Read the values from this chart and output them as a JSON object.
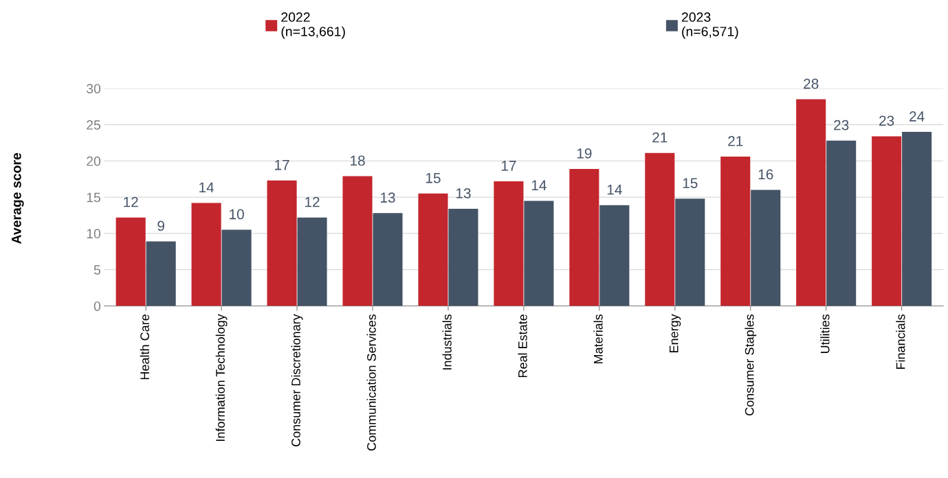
{
  "chart_data": {
    "type": "bar",
    "ylabel": "Average score",
    "categories": [
      "Health Care",
      "Information Technology",
      "Consumer Discretionary",
      "Communication Services",
      "Industrials",
      "Real Estate",
      "Materials",
      "Energy",
      "Consumer Staples",
      "Utilities",
      "Financials"
    ],
    "series": [
      {
        "name": "2022\n(n=13,661)",
        "color": "#c4262e",
        "values": [
          12.2,
          14.2,
          17.3,
          17.9,
          15.5,
          17.2,
          18.9,
          21.1,
          20.6,
          28.5,
          23.4
        ],
        "value_labels": [
          "12",
          "14",
          "17",
          "18",
          "15",
          "17",
          "19",
          "21",
          "21",
          "28",
          "23"
        ]
      },
      {
        "name": "2023\n(n=6,571)",
        "color": "#455366",
        "values": [
          8.9,
          10.5,
          12.2,
          12.8,
          13.4,
          14.5,
          13.9,
          14.8,
          16.0,
          22.8,
          24.0
        ],
        "value_labels": [
          "9",
          "10",
          "12",
          "13",
          "13",
          "14",
          "14",
          "15",
          "16",
          "23",
          "24"
        ]
      }
    ],
    "ylim": [
      0,
      30
    ],
    "yticks": [
      0,
      5,
      10,
      15,
      20,
      25,
      30
    ],
    "grid": "y",
    "legend": "top"
  }
}
